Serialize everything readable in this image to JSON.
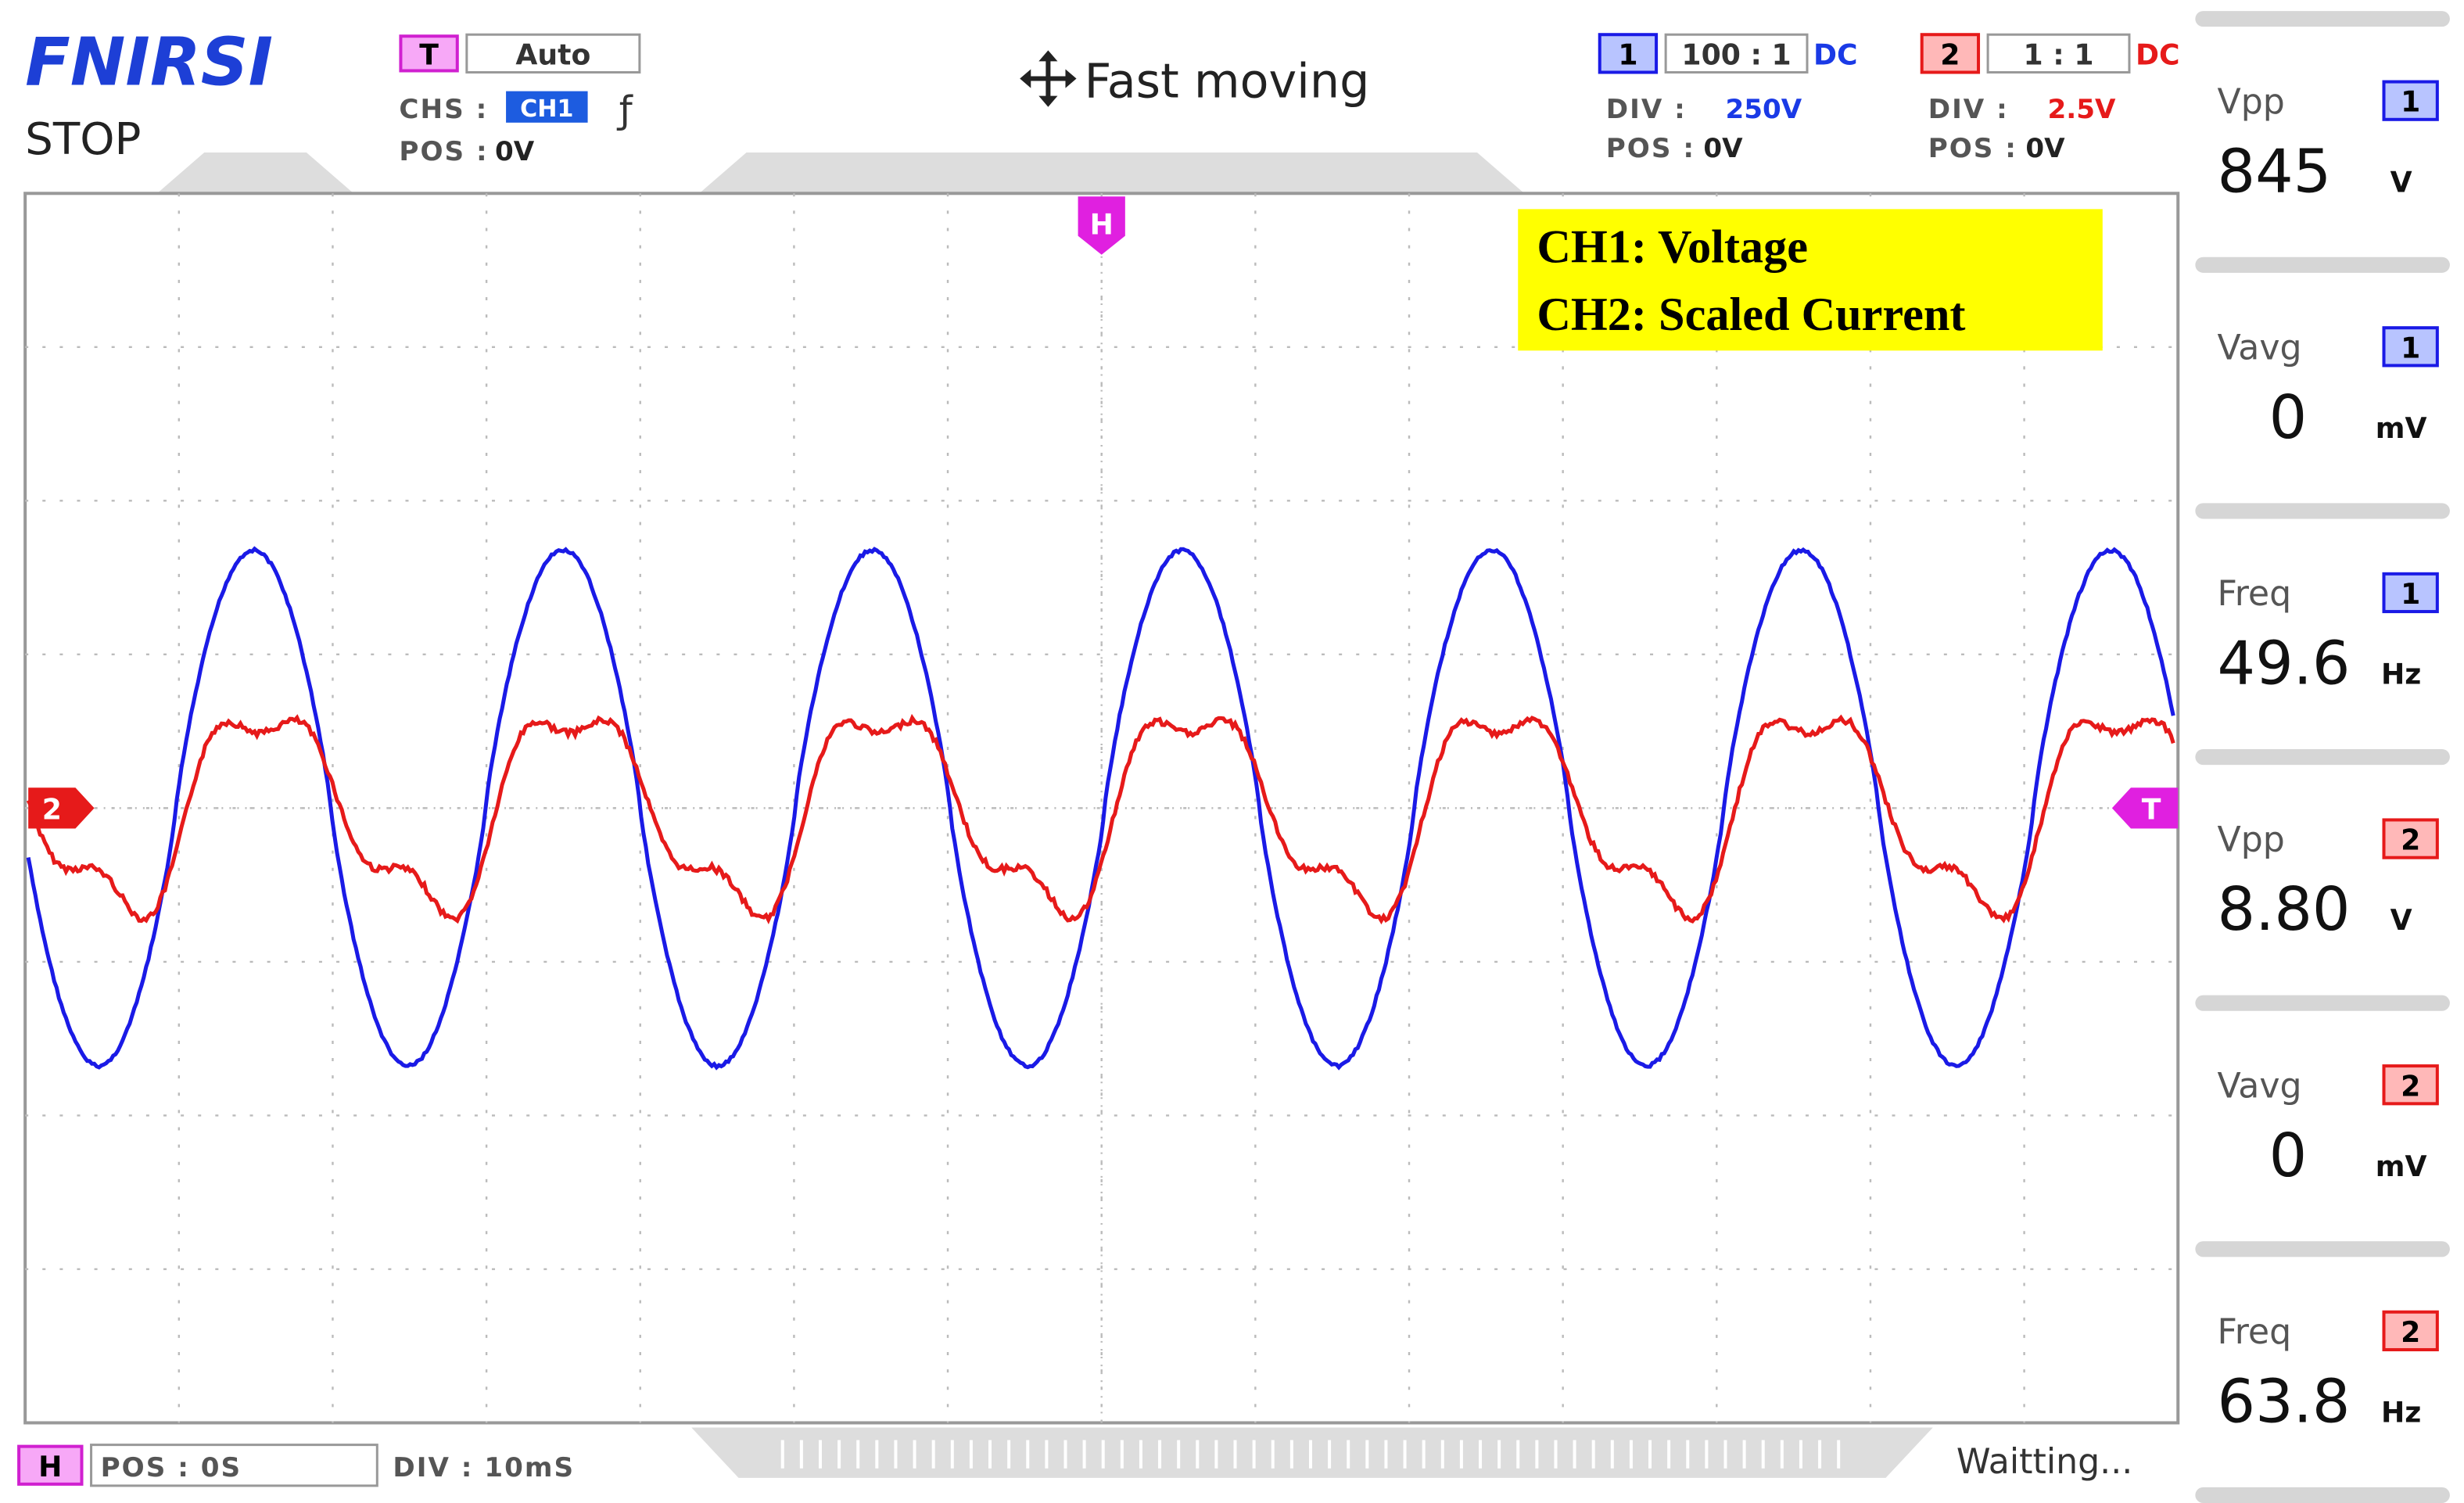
{
  "header": {
    "brand": "FNIRSI",
    "state": "STOP",
    "trigger": {
      "badge": "T",
      "mode": "Auto",
      "chs_label": "CHS :",
      "chs_value": "CH1",
      "edge": "ƒ",
      "pos_label": "POS :",
      "pos_value": "0V"
    },
    "hint": "Fast moving",
    "channels": [
      {
        "badge": "1",
        "probe": "100 : 1",
        "coupling": "DC",
        "div_label": "DIV :",
        "div_value": "250V",
        "pos_label": "POS :",
        "pos_value": "0V"
      },
      {
        "badge": "2",
        "probe": "1 : 1",
        "coupling": "DC",
        "div_label": "DIV :",
        "div_value": "2.5V",
        "pos_label": "POS :",
        "pos_value": "0V"
      }
    ]
  },
  "screen": {
    "legend": [
      "CH1: Voltage",
      "CH2: Scaled Current"
    ],
    "markers": {
      "h": "H",
      "ch2": "2",
      "trigger": "T"
    }
  },
  "measurements": [
    {
      "label": "Vpp",
      "channel": "1",
      "value": "845",
      "unit": "V"
    },
    {
      "label": "Vavg",
      "channel": "1",
      "value": "0",
      "unit": "mV"
    },
    {
      "label": "Freq",
      "channel": "1",
      "value": "49.6",
      "unit": "Hz"
    },
    {
      "label": "Vpp",
      "channel": "2",
      "value": "8.80",
      "unit": "V"
    },
    {
      "label": "Vavg",
      "channel": "2",
      "value": "0",
      "unit": "mV"
    },
    {
      "label": "Freq",
      "channel": "2",
      "value": "63.8",
      "unit": "Hz"
    }
  ],
  "footer": {
    "badge": "H",
    "pos": "POS : 0S",
    "div": "DIV : 10mS",
    "status": "Waitting..."
  }
}
